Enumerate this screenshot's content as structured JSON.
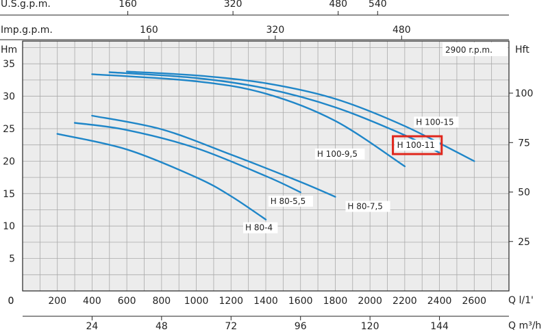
{
  "chart_data": {
    "type": "line",
    "speed_label": "2900 r.p.m.",
    "highlighted_series": "H 100-11",
    "highlight_color": "#e0261b",
    "curve_color": "#1f86c8",
    "grid": true,
    "axes": {
      "x_bottom": {
        "unit_label": "Q  l/1'",
        "ticks": [
          0,
          200,
          400,
          600,
          800,
          1000,
          1200,
          1400,
          1600,
          1800,
          2000,
          2200,
          2400,
          2600
        ],
        "range": [
          0,
          2800
        ]
      },
      "x_m3h": {
        "unit_label": "Q  m³/h",
        "ticks": [
          24,
          48,
          72,
          96,
          120,
          144
        ]
      },
      "x_usgpm": {
        "unit_label": "U.S.g.p.m.",
        "ticks": [
          160,
          320,
          480,
          540
        ]
      },
      "x_impgpm": {
        "unit_label": "Imp.g.p.m.",
        "ticks": [
          160,
          320,
          480
        ]
      },
      "y_left": {
        "unit_label": "Hm",
        "ticks": [
          5,
          10,
          15,
          20,
          25,
          30,
          35
        ],
        "range": [
          0,
          38.5
        ]
      },
      "y_right": {
        "unit_label": "Hft",
        "ticks": [
          25,
          50,
          75,
          100
        ]
      }
    },
    "series": [
      {
        "name": "H 80-4",
        "points": [
          [
            200,
            24.2
          ],
          [
            600,
            21.8
          ],
          [
            1000,
            17.5
          ],
          [
            1200,
            14.6
          ],
          [
            1400,
            11.0
          ]
        ]
      },
      {
        "name": "H 80-5,5",
        "points": [
          [
            300,
            25.9
          ],
          [
            600,
            24.8
          ],
          [
            1000,
            22.0
          ],
          [
            1400,
            17.7
          ],
          [
            1600,
            15.2
          ]
        ]
      },
      {
        "name": "H 80-7,5",
        "points": [
          [
            400,
            27.0
          ],
          [
            800,
            24.9
          ],
          [
            1200,
            21.0
          ],
          [
            1600,
            16.8
          ],
          [
            1800,
            14.5
          ]
        ]
      },
      {
        "name": "H 100-9,5",
        "points": [
          [
            400,
            33.4
          ],
          [
            1000,
            32.3
          ],
          [
            1400,
            30.4
          ],
          [
            1800,
            26.2
          ],
          [
            2200,
            19.2
          ]
        ]
      },
      {
        "name": "H 100-11",
        "points": [
          [
            500,
            33.7
          ],
          [
            1000,
            32.8
          ],
          [
            1400,
            31.2
          ],
          [
            1800,
            28.3
          ],
          [
            2200,
            24.0
          ],
          [
            2400,
            21.3
          ]
        ]
      },
      {
        "name": "H 100-15",
        "points": [
          [
            600,
            33.8
          ],
          [
            1000,
            33.2
          ],
          [
            1400,
            32.0
          ],
          [
            1800,
            29.6
          ],
          [
            2200,
            25.4
          ],
          [
            2600,
            20.0
          ]
        ]
      }
    ]
  }
}
